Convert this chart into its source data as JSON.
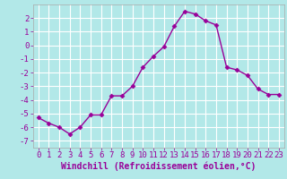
{
  "x": [
    0,
    1,
    2,
    3,
    4,
    5,
    6,
    7,
    8,
    9,
    10,
    11,
    12,
    13,
    14,
    15,
    16,
    17,
    18,
    19,
    20,
    21,
    22,
    23
  ],
  "y": [
    -5.3,
    -5.7,
    -6.0,
    -6.5,
    -6.0,
    -5.1,
    -5.1,
    -3.7,
    -3.7,
    -3.0,
    -1.6,
    -0.8,
    -0.1,
    1.4,
    2.5,
    2.3,
    1.8,
    1.5,
    -1.6,
    -1.8,
    -2.2,
    -3.2,
    -3.6,
    -3.6
  ],
  "line_color": "#990099",
  "marker": "D",
  "marker_size": 2.5,
  "linewidth": 1.0,
  "xlabel": "Windchill (Refroidissement éolien,°C)",
  "xlabel_fontsize": 7,
  "xlim": [
    -0.5,
    23.5
  ],
  "ylim": [
    -7.5,
    3.0
  ],
  "yticks": [
    -7,
    -6,
    -5,
    -4,
    -3,
    -2,
    -1,
    0,
    1,
    2
  ],
  "xticks": [
    0,
    1,
    2,
    3,
    4,
    5,
    6,
    7,
    8,
    9,
    10,
    11,
    12,
    13,
    14,
    15,
    16,
    17,
    18,
    19,
    20,
    21,
    22,
    23
  ],
  "background_color": "#b2e8e8",
  "grid_color": "#ffffff",
  "tick_fontsize": 6.5,
  "spine_color": "#aaaaaa"
}
